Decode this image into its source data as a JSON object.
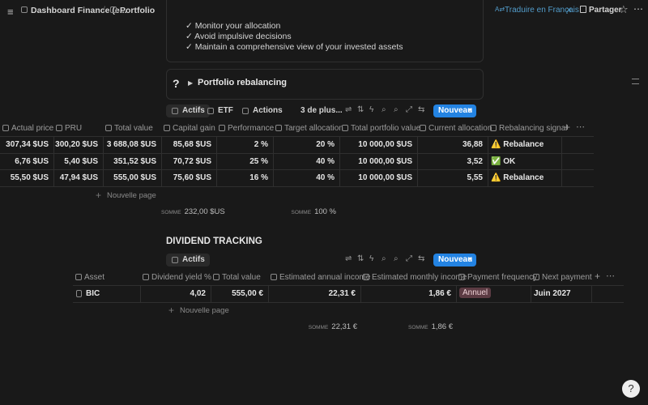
{
  "topbar": {
    "breadcrumb": [
      "Dashboard Finance (e...",
      "Portfolio"
    ],
    "translate": "Traduire en Français",
    "share": "Partager"
  },
  "checklist": [
    "✓ Monitor your allocation",
    "✓ Avoid impulsive decisions",
    "✓ Maintain a comprehensive view of your invested assets"
  ],
  "toggle": {
    "icon": "?",
    "label": "Portfolio rebalancing"
  },
  "portfolio_views": {
    "tabs": [
      "Actifs",
      "ETF",
      "Actions",
      "3 de plus..."
    ],
    "new_button": "Nouveau"
  },
  "portfolio_table": {
    "columns": [
      "Actual price",
      "PRU",
      "Total value",
      "Capital gain",
      "Performance",
      "Target allocation",
      "Total portfolio value",
      "Current allocation",
      "Rebalancing signal"
    ],
    "rows": [
      [
        "307,34 $US",
        "300,20 $US",
        "3 688,08 $US",
        "85,68 $US",
        "2 %",
        "20 %",
        "10 000,00 $US",
        "36,88",
        "⚠️ Rebalance"
      ],
      [
        "6,76 $US",
        "5,40 $US",
        "351,52 $US",
        "70,72 $US",
        "25 %",
        "40 %",
        "10 000,00 $US",
        "3,52",
        "✅ OK"
      ],
      [
        "55,50 $US",
        "47,94 $US",
        "555,00 $US",
        "75,60 $US",
        "16 %",
        "40 %",
        "10 000,00 $US",
        "5,55",
        "⚠️ Rebalance"
      ]
    ],
    "add_row": "Nouvelle page",
    "sums": [
      {
        "label": "SOMME",
        "value": "232,00 $US"
      },
      {
        "label": "SOMME",
        "value": "100 %"
      }
    ]
  },
  "dividend": {
    "title": "DIVIDEND TRACKING",
    "views": {
      "tabs": [
        "Actifs"
      ],
      "new_button": "Nouveau"
    },
    "table": {
      "columns": [
        "Asset",
        "Dividend yield %",
        "Total value",
        "Estimated annual income",
        "Estimated monthly income",
        "Payment frequency",
        "Next payment"
      ],
      "rows": [
        [
          "BIC",
          "4,02",
          "555,00 €",
          "22,31 €",
          "1,86 €",
          "Annuel",
          "Juin 2027"
        ]
      ],
      "add_row": "Nouvelle page",
      "sums": [
        {
          "label": "SOMME",
          "value": "22,31 €"
        },
        {
          "label": "SOMME",
          "value": "1,86 €"
        }
      ]
    }
  }
}
